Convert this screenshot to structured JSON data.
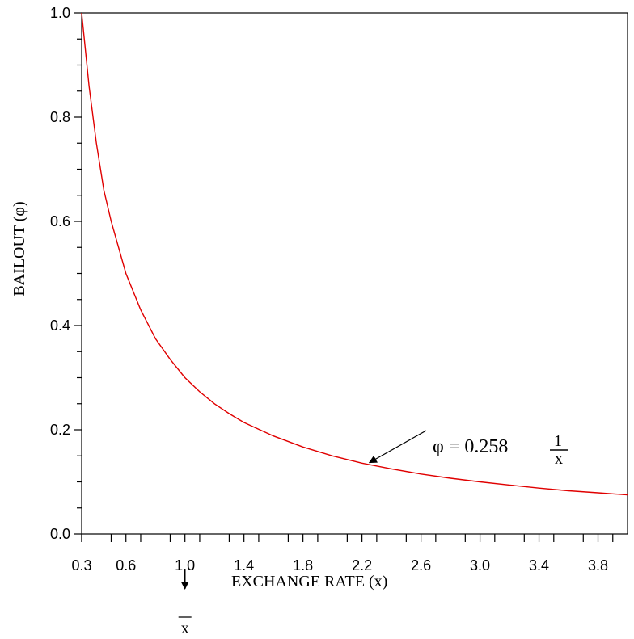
{
  "chart_data": {
    "type": "line",
    "title": "",
    "xlabel": "EXCHANGE RATE (x)",
    "ylabel": "BAILOUT (φ)",
    "xlim": [
      0.3,
      4.0
    ],
    "ylim": [
      0.0,
      1.0
    ],
    "x_ticks": [
      0.3,
      0.6,
      1.0,
      1.4,
      1.8,
      2.2,
      2.6,
      3.0,
      3.4,
      3.8
    ],
    "x_tick_labels": [
      "0.3",
      "0.6",
      "1.0",
      "1.4",
      "1.8",
      "2.2",
      "2.6",
      "3.0",
      "3.4",
      "3.8"
    ],
    "y_ticks": [
      0.0,
      0.2,
      0.4,
      0.6,
      0.8,
      1.0
    ],
    "y_tick_labels": [
      "0.0",
      "0.2",
      "0.4",
      "0.6",
      "0.8",
      "1.0"
    ],
    "grid": false,
    "series": [
      {
        "color": "#e00000",
        "x": [
          0.3,
          0.35,
          0.4,
          0.45,
          0.5,
          0.6,
          0.7,
          0.8,
          0.9,
          1.0,
          1.1,
          1.2,
          1.3,
          1.4,
          1.6,
          1.8,
          2.0,
          2.2,
          2.4,
          2.6,
          2.8,
          3.0,
          3.2,
          3.4,
          3.6,
          3.8,
          4.0
        ],
        "y": [
          1.0,
          0.86,
          0.75,
          0.66,
          0.6,
          0.5,
          0.43,
          0.375,
          0.335,
          0.3,
          0.273,
          0.25,
          0.231,
          0.214,
          0.188,
          0.167,
          0.15,
          0.136,
          0.125,
          0.115,
          0.107,
          0.1,
          0.094,
          0.088,
          0.083,
          0.079,
          0.075
        ]
      }
    ],
    "annotation": {
      "lhs": "φ = 0.258",
      "numerator": "1",
      "denominator": "x",
      "arrow_points_to": {
        "x": 2.25,
        "y": 0.137
      }
    },
    "xbar_marker": {
      "label": "x",
      "at_x": 1.0
    }
  }
}
